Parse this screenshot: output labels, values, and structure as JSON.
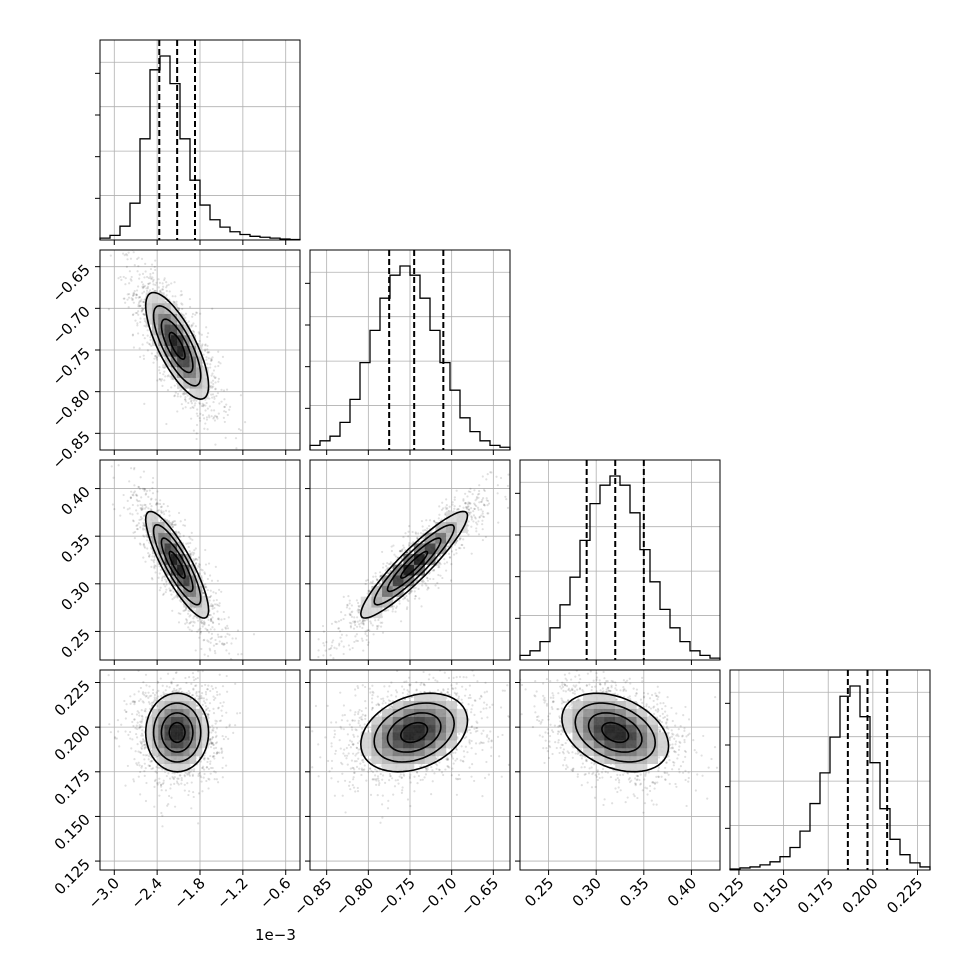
{
  "chart_data": {
    "type": "corner",
    "grid": true,
    "offset_text": "1e−3",
    "parameters": [
      {
        "range": [
          -3.2,
          -0.4
        ],
        "ticks": [
          -3.0,
          -2.4,
          -1.8,
          -1.2,
          -0.6
        ],
        "tick_labels": [
          "−3.0",
          "−2.4",
          "−1.8",
          "−1.2",
          "−0.6"
        ],
        "quantiles": [
          -2.37,
          -2.12,
          -1.87
        ],
        "median": -2.12
      },
      {
        "range": [
          -0.87,
          -0.63
        ],
        "ticks": [
          -0.85,
          -0.8,
          -0.75,
          -0.7,
          -0.65
        ],
        "tick_labels": [
          "−0.85",
          "−0.80",
          "−0.75",
          "−0.70",
          "−0.65"
        ],
        "quantiles": [
          -0.775,
          -0.745,
          -0.71
        ],
        "median": -0.745
      },
      {
        "range": [
          0.22,
          0.43
        ],
        "ticks": [
          0.25,
          0.3,
          0.35,
          0.4
        ],
        "tick_labels": [
          "0.25",
          "0.30",
          "0.35",
          "0.40"
        ],
        "quantiles": [
          0.29,
          0.32,
          0.35
        ],
        "median": 0.32
      },
      {
        "range": [
          0.12,
          0.232
        ],
        "ticks": [
          0.125,
          0.15,
          0.175,
          0.2,
          0.225
        ],
        "tick_labels": [
          "0.125",
          "0.150",
          "0.175",
          "0.200",
          "0.225"
        ],
        "quantiles": [
          0.186,
          0.197,
          0.208
        ],
        "median": 0.197
      }
    ],
    "histograms": [
      {
        "bin_edges_range": [
          -3.2,
          -0.4
        ],
        "bins": 20,
        "counts": [
          0.2,
          0.5,
          1.5,
          4.0,
          11.0,
          18.5,
          20.0,
          17.0,
          11.0,
          6.5,
          3.8,
          2.2,
          1.4,
          0.9,
          0.6,
          0.4,
          0.3,
          0.2,
          0.1,
          0.05
        ]
      },
      {
        "bin_edges_range": [
          -0.87,
          -0.63
        ],
        "bins": 20,
        "counts": [
          0.5,
          1.0,
          1.5,
          3.0,
          5.5,
          9.5,
          13.0,
          16.5,
          19.0,
          20.0,
          19.0,
          16.5,
          13.0,
          9.5,
          6.5,
          3.5,
          2.0,
          1.0,
          0.5,
          0.3
        ]
      },
      {
        "bin_edges_range": [
          0.22,
          0.43
        ],
        "bins": 20,
        "counts": [
          0.5,
          1.0,
          2.0,
          3.5,
          6.0,
          9.0,
          13.0,
          17.0,
          19.0,
          20.0,
          19.0,
          16.0,
          12.0,
          8.5,
          5.5,
          3.5,
          2.0,
          1.0,
          0.5,
          0.2
        ]
      },
      {
        "bin_edges_range": [
          0.12,
          0.232
        ],
        "bins": 20,
        "counts": [
          0.1,
          0.2,
          0.3,
          0.5,
          0.8,
          1.3,
          2.2,
          3.8,
          6.5,
          9.5,
          13.0,
          17.0,
          18.0,
          15.0,
          10.5,
          6.0,
          3.0,
          1.5,
          0.7,
          0.3
        ]
      }
    ],
    "pair_panels": [
      {
        "row": 1,
        "col": 0,
        "mean": [
          -2.12,
          -0.745
        ],
        "sd": [
          0.22,
          0.032
        ],
        "corr": -0.75
      },
      {
        "row": 2,
        "col": 0,
        "mean": [
          -2.12,
          0.32
        ],
        "sd": [
          0.22,
          0.028
        ],
        "corr": -0.85
      },
      {
        "row": 2,
        "col": 1,
        "mean": [
          -0.745,
          0.32
        ],
        "sd": [
          0.032,
          0.028
        ],
        "corr": 0.92
      },
      {
        "row": 3,
        "col": 0,
        "mean": [
          -2.12,
          0.197
        ],
        "sd": [
          0.22,
          0.011
        ],
        "corr": 0.0
      },
      {
        "row": 3,
        "col": 1,
        "mean": [
          -0.745,
          0.197
        ],
        "sd": [
          0.032,
          0.011
        ],
        "corr": 0.3
      },
      {
        "row": 3,
        "col": 2,
        "mean": [
          0.32,
          0.197
        ],
        "sd": [
          0.028,
          0.011
        ],
        "corr": -0.35
      }
    ],
    "contour_sigma_levels": [
      0.5,
      1.0,
      1.5,
      2.0
    ]
  }
}
